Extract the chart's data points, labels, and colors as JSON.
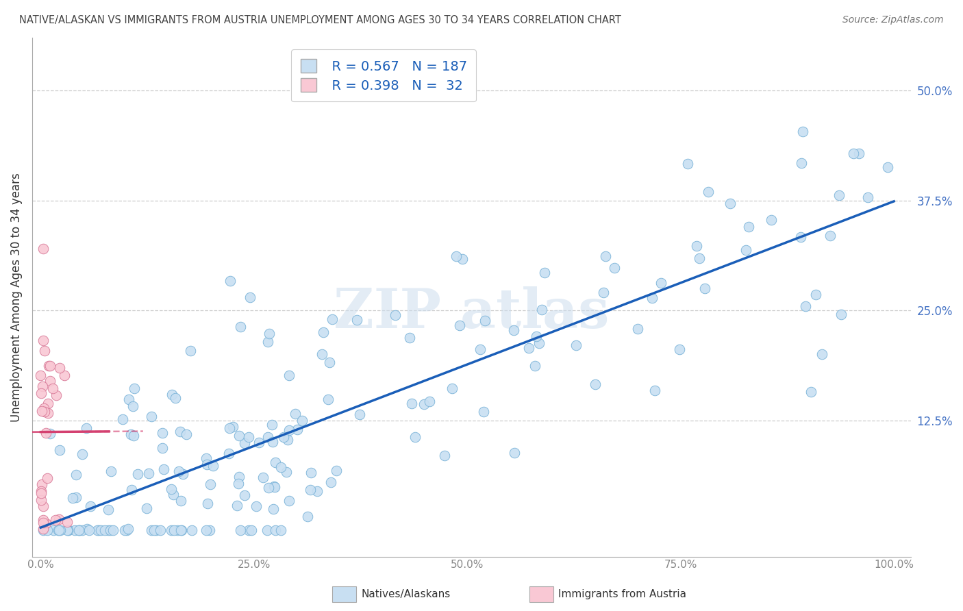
{
  "title": "NATIVE/ALASKAN VS IMMIGRANTS FROM AUSTRIA UNEMPLOYMENT AMONG AGES 30 TO 34 YEARS CORRELATION CHART",
  "source": "Source: ZipAtlas.com",
  "ylabel": "Unemployment Among Ages 30 to 34 years",
  "xlim": [
    -0.01,
    1.02
  ],
  "ylim": [
    -0.03,
    0.56
  ],
  "xticks": [
    0.0,
    0.25,
    0.5,
    0.75,
    1.0
  ],
  "xticklabels": [
    "0.0%",
    "25.0%",
    "50.0%",
    "75.0%",
    "100.0%"
  ],
  "yticks": [
    0.0,
    0.125,
    0.25,
    0.375,
    0.5
  ],
  "yticklabels": [
    "",
    "12.5%",
    "25.0%",
    "37.5%",
    "50.0%"
  ],
  "native_R": 0.567,
  "native_N": 187,
  "austria_R": 0.398,
  "austria_N": 32,
  "native_color": "#c8dff2",
  "native_edge": "#7ab3d8",
  "austria_color": "#f9c8d4",
  "austria_edge": "#d87a98",
  "native_line_color": "#1a5eb8",
  "austria_line_color": "#d44070",
  "watermark": "ZIPatlas",
  "background_color": "#ffffff",
  "grid_color": "#c0c0c0",
  "title_color": "#444444",
  "tick_color_y": "#4472C4",
  "tick_color_x": "#888888",
  "legend_text_color": "#1a5eb8"
}
